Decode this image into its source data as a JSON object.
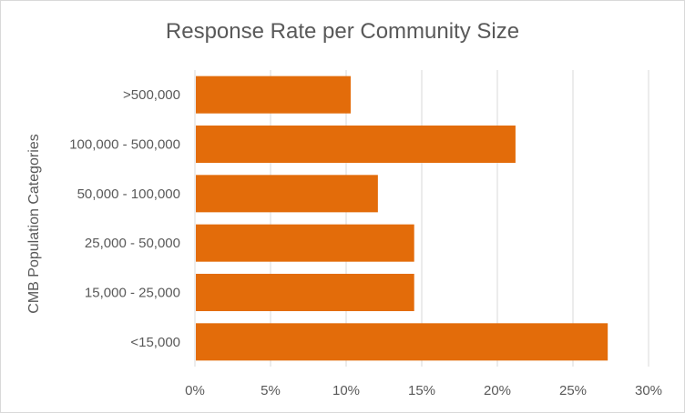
{
  "chart_data": {
    "type": "bar",
    "orientation": "horizontal",
    "title": "Response Rate per Community Size",
    "xlabel": "",
    "ylabel": "CMB Population Categories",
    "categories": [
      ">500,000",
      "100,000 - 500,000",
      "50,000 - 100,000",
      "25,000 - 50,000",
      "15,000 - 25,000",
      "<15,000"
    ],
    "values": [
      10.3,
      21.2,
      12.1,
      14.5,
      14.5,
      27.3
    ],
    "value_unit": "%",
    "xlim": [
      0,
      30
    ],
    "xticks": [
      "0%",
      "5%",
      "10%",
      "15%",
      "20%",
      "25%",
      "30%"
    ],
    "grid": "vertical",
    "legend": "none",
    "colors": {
      "bar": "#E36C0A",
      "grid": "#d9d9d9",
      "text": "#595959"
    }
  }
}
